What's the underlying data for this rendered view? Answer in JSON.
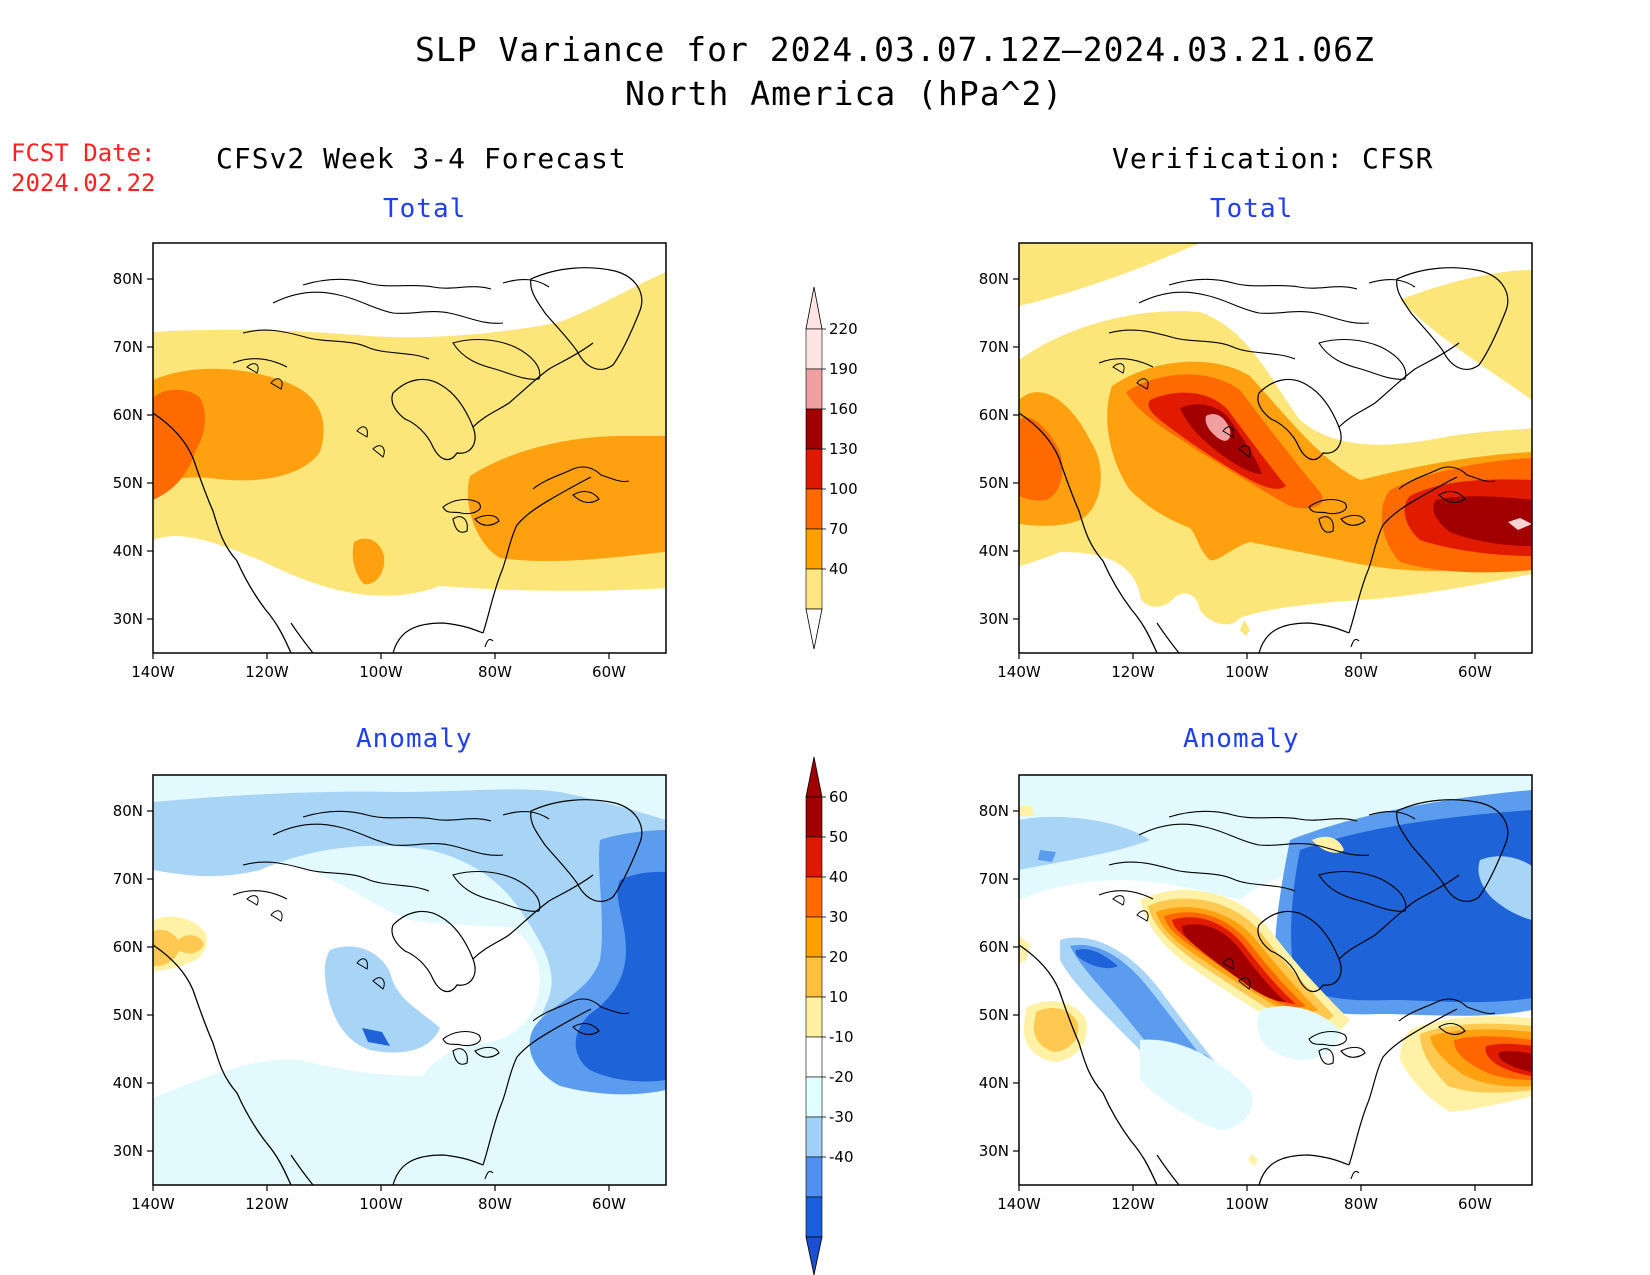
{
  "title": {
    "line1": "SLP Variance for 2024.03.07.12Z–2024.03.21.06Z",
    "line2": "North America (hPa^2)"
  },
  "fcst_date": {
    "label": "FCST Date:",
    "value": "2024.02.22"
  },
  "left_column": {
    "heading": "CFSv2 Week 3-4 Forecast"
  },
  "right_column": {
    "heading": "Verification: CFSR"
  },
  "panels": {
    "forecast_total": {
      "subtitle": "Total"
    },
    "verification_total": {
      "subtitle": "Total"
    },
    "forecast_anomaly": {
      "subtitle": "Anomaly"
    },
    "verification_anomaly": {
      "subtitle": "Anomaly"
    }
  },
  "axes": {
    "lat_labels": [
      "80N",
      "70N",
      "60N",
      "50N",
      "40N",
      "30N"
    ],
    "lon_labels": [
      "140W",
      "120W",
      "100W",
      "80W",
      "60W"
    ]
  },
  "colorbar_total": {
    "labels": [
      "220",
      "190",
      "160",
      "130",
      "100",
      "70",
      "40"
    ],
    "colors": [
      "#ffe4e4",
      "#f0a0a0",
      "#a00000",
      "#dd1a00",
      "#ff6a00",
      "#ffa000",
      "#ffe680"
    ]
  },
  "colorbar_anomaly": {
    "labels": [
      "60",
      "50",
      "40",
      "30",
      "20",
      "10",
      "-10",
      "-20",
      "-30",
      "-40"
    ],
    "colors": [
      "#a00000",
      "#dd1a00",
      "#ff6a00",
      "#ffa000",
      "#ffc040",
      "#fff0a0",
      "#ffffff",
      "#e0ffff",
      "#a0d0f8",
      "#5090f0",
      "#1a60dd",
      "#1a50d0"
    ]
  },
  "map_colors": {
    "total": {
      "c40": "#fce67a",
      "c70": "#ffa010",
      "c100": "#ff6600",
      "c130": "#e01b00",
      "c160": "#a20000",
      "c190": "#f0a0a0"
    },
    "anomaly": {
      "p10": "#fff2a6",
      "p20": "#ffc850",
      "p30": "#ffa010",
      "p40": "#ff6600",
      "p50": "#e01b00",
      "p60": "#a20000",
      "n10": "#e2fafe",
      "n20": "#a8d4f6",
      "n30": "#5c9cee",
      "n40": "#1f63d8"
    }
  }
}
